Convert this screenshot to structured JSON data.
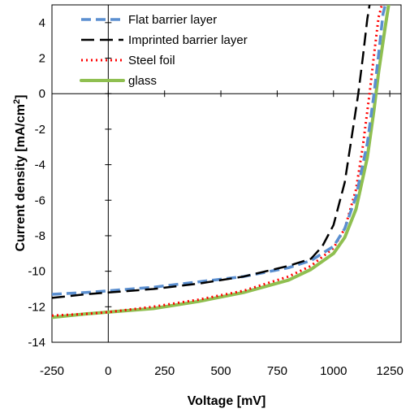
{
  "chart_data": {
    "type": "line",
    "title": "",
    "xlabel": "Voltage [mV]",
    "ylabel_main": "Current density [mA/cm",
    "ylabel_sup": "2",
    "ylabel_end": "]",
    "xlim": [
      -250,
      1300
    ],
    "ylim": [
      -14,
      5
    ],
    "x_ticks": [
      -250,
      0,
      250,
      500,
      750,
      1000,
      1250
    ],
    "y_ticks": [
      4,
      2,
      0,
      -2,
      -4,
      -6,
      -8,
      -10,
      -12,
      -14
    ],
    "grid": false,
    "legend_position": "top-left",
    "series": [
      {
        "name": "Flat barrier layer",
        "color": "#5b8fd0",
        "style": "dash",
        "x": [
          -250,
          -100,
          0,
          200,
          400,
          600,
          800,
          900,
          1000,
          1050,
          1100,
          1150,
          1180,
          1200,
          1220,
          1230
        ],
        "y": [
          -11.3,
          -11.2,
          -11.1,
          -10.9,
          -10.6,
          -10.3,
          -9.8,
          -9.4,
          -8.6,
          -7.6,
          -5.8,
          -2.8,
          0.0,
          2.2,
          4.5,
          5.0
        ]
      },
      {
        "name": "Imprinted barrier layer",
        "color": "#000000",
        "style": "longdash",
        "x": [
          -250,
          -100,
          0,
          200,
          400,
          600,
          800,
          900,
          950,
          1000,
          1050,
          1080,
          1110,
          1130,
          1150,
          1160
        ],
        "y": [
          -11.5,
          -11.3,
          -11.2,
          -11.0,
          -10.7,
          -10.3,
          -9.7,
          -9.3,
          -8.6,
          -7.4,
          -5.0,
          -2.5,
          0.0,
          2.0,
          4.2,
          5.0
        ]
      },
      {
        "name": "Steel foil",
        "color": "#ff0000",
        "style": "dot",
        "x": [
          -250,
          -100,
          0,
          200,
          400,
          600,
          800,
          900,
          1000,
          1050,
          1100,
          1130,
          1160,
          1180,
          1200,
          1215
        ],
        "y": [
          -12.5,
          -12.4,
          -12.3,
          -12.0,
          -11.6,
          -11.1,
          -10.3,
          -9.7,
          -8.7,
          -7.6,
          -5.4,
          -3.0,
          0.0,
          2.2,
          4.3,
          5.0
        ]
      },
      {
        "name": "glass",
        "color": "#8fbf50",
        "style": "solid",
        "x": [
          -250,
          -100,
          0,
          200,
          400,
          600,
          800,
          900,
          1000,
          1050,
          1100,
          1150,
          1180,
          1200,
          1230,
          1245
        ],
        "y": [
          -12.6,
          -12.4,
          -12.3,
          -12.1,
          -11.7,
          -11.2,
          -10.5,
          -9.9,
          -9.0,
          -8.1,
          -6.5,
          -3.6,
          -0.9,
          1.2,
          3.8,
          5.0
        ]
      }
    ]
  }
}
